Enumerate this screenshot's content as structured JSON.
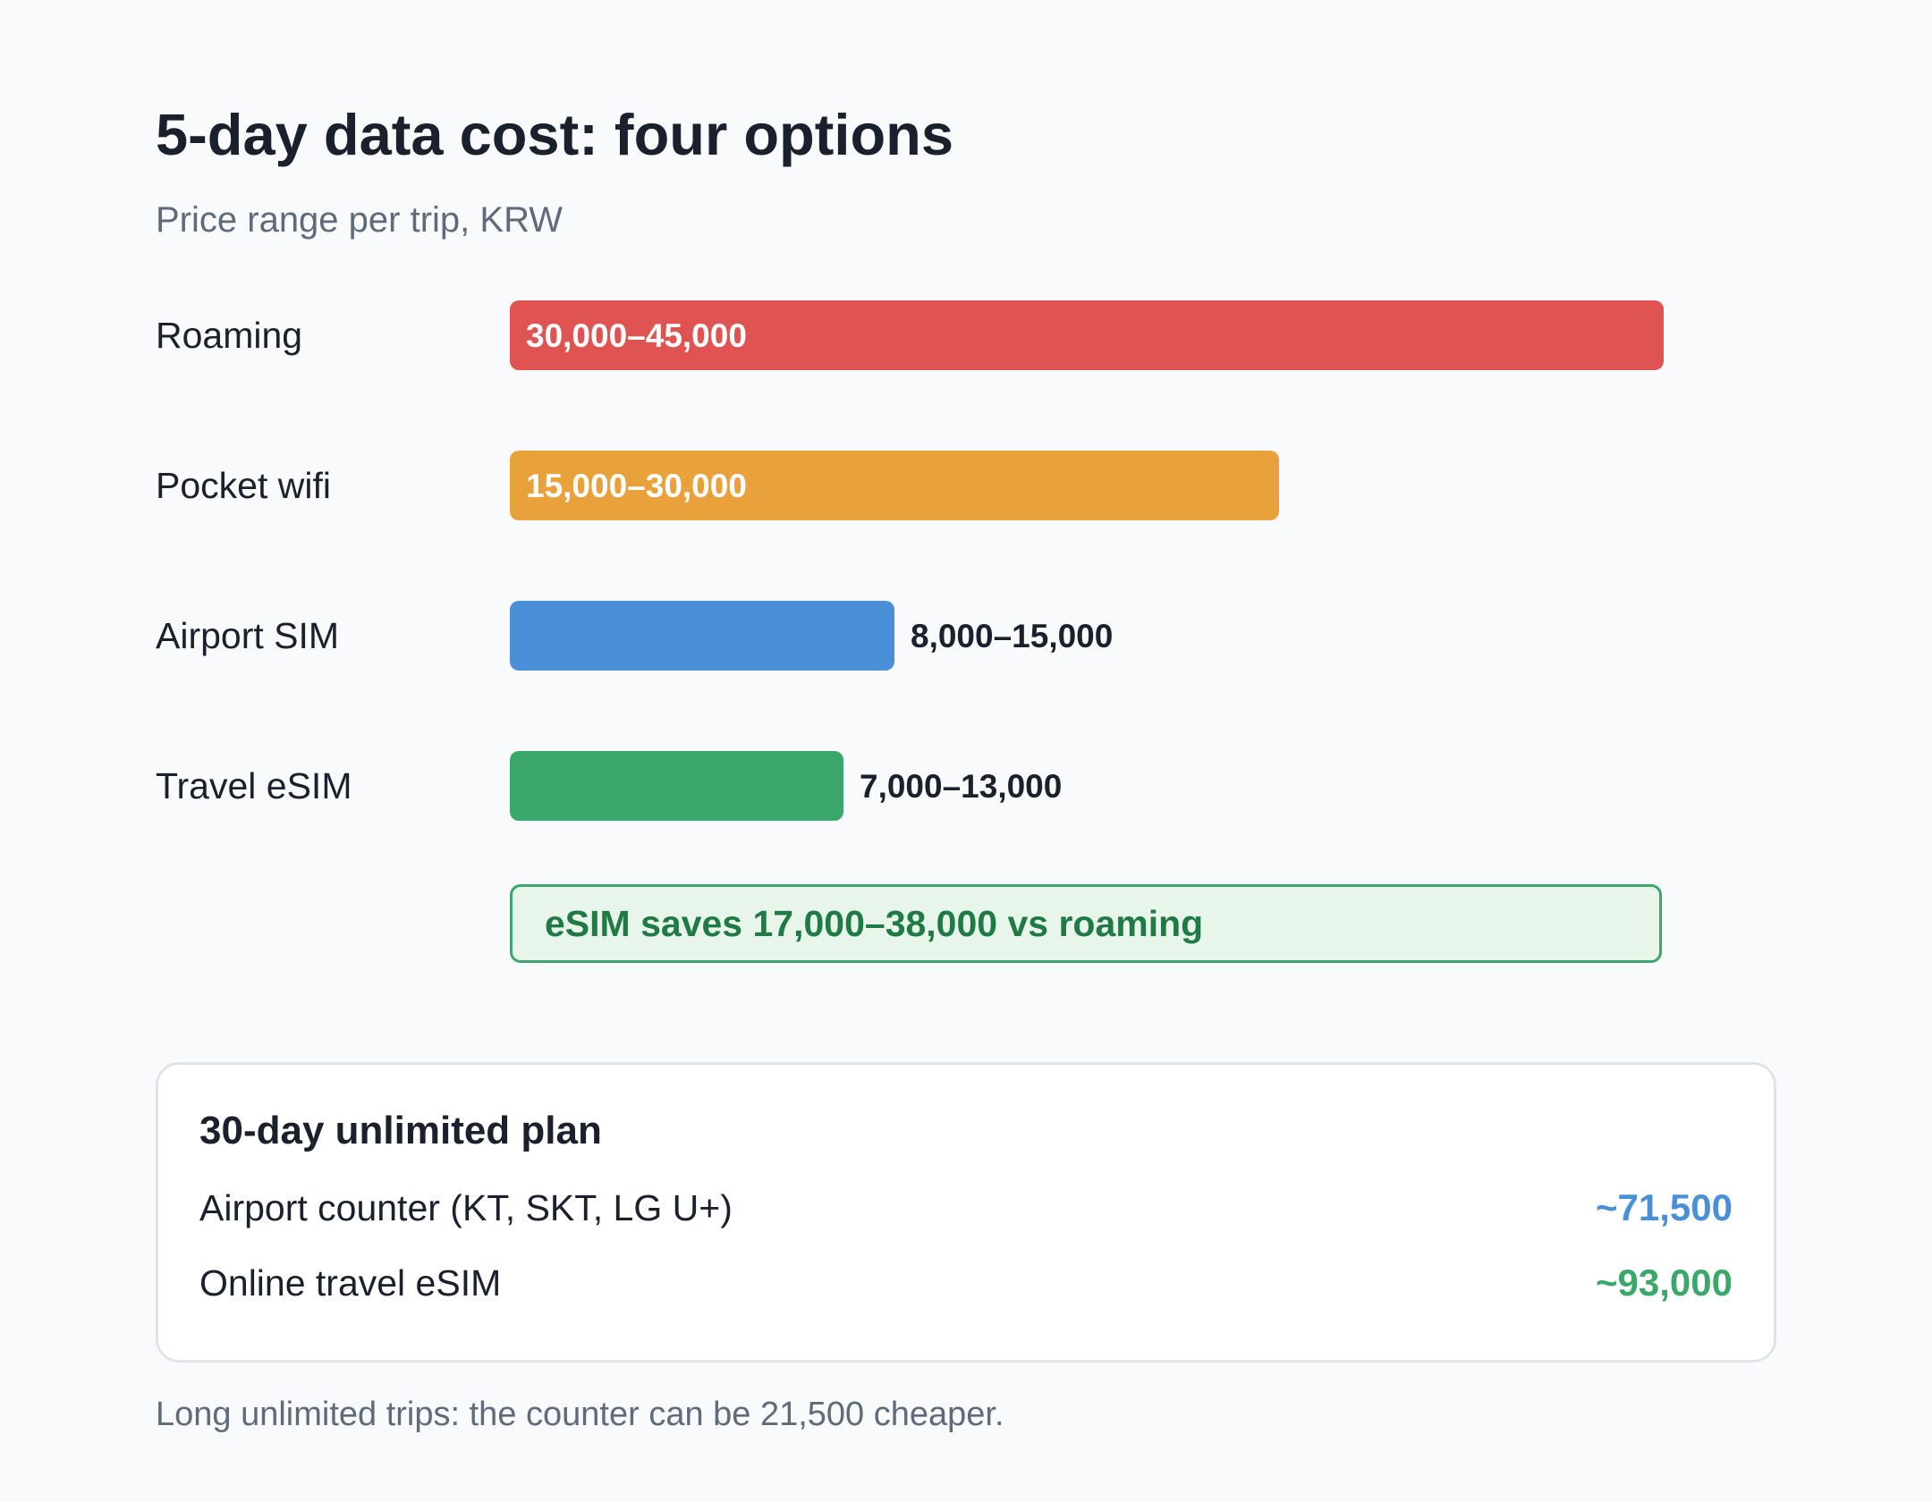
{
  "colors": {
    "roaming": "#e05353",
    "pocket_wifi": "#e9a13c",
    "airport_sim": "#4a90d9",
    "travel_esim": "#3aa86b",
    "counter_price": "#4a90d9",
    "esim_price": "#3aa86b"
  },
  "chart_data": {
    "type": "bar",
    "orientation": "horizontal",
    "title": "5-day data cost: four options",
    "subtitle": "Price range per trip, KRW",
    "categories": [
      "Roaming",
      "Pocket wifi",
      "Airport SIM",
      "Travel eSIM"
    ],
    "series": [
      {
        "values_low": [
          30000,
          15000,
          8000,
          7000
        ],
        "values_high": [
          45000,
          30000,
          15000,
          13000
        ]
      }
    ],
    "value_labels": [
      "30,000–45,000",
      "15,000–30,000",
      "8,000–15,000",
      "7,000–13,000"
    ],
    "xlim": [
      0,
      45000
    ],
    "grid": false,
    "annotation": "eSIM saves 17,000–38,000 vs roaming"
  },
  "plan": {
    "title": "30-day unlimited plan",
    "rows": [
      {
        "name": "Airport counter (KT, SKT, LG U+)",
        "price": "~71,500",
        "color": "#4a90d9"
      },
      {
        "name": "Online travel eSIM",
        "price": "~93,000",
        "color": "#3aa86b"
      }
    ]
  },
  "footnote": "Long unlimited trips: the counter can be 21,500 cheaper."
}
